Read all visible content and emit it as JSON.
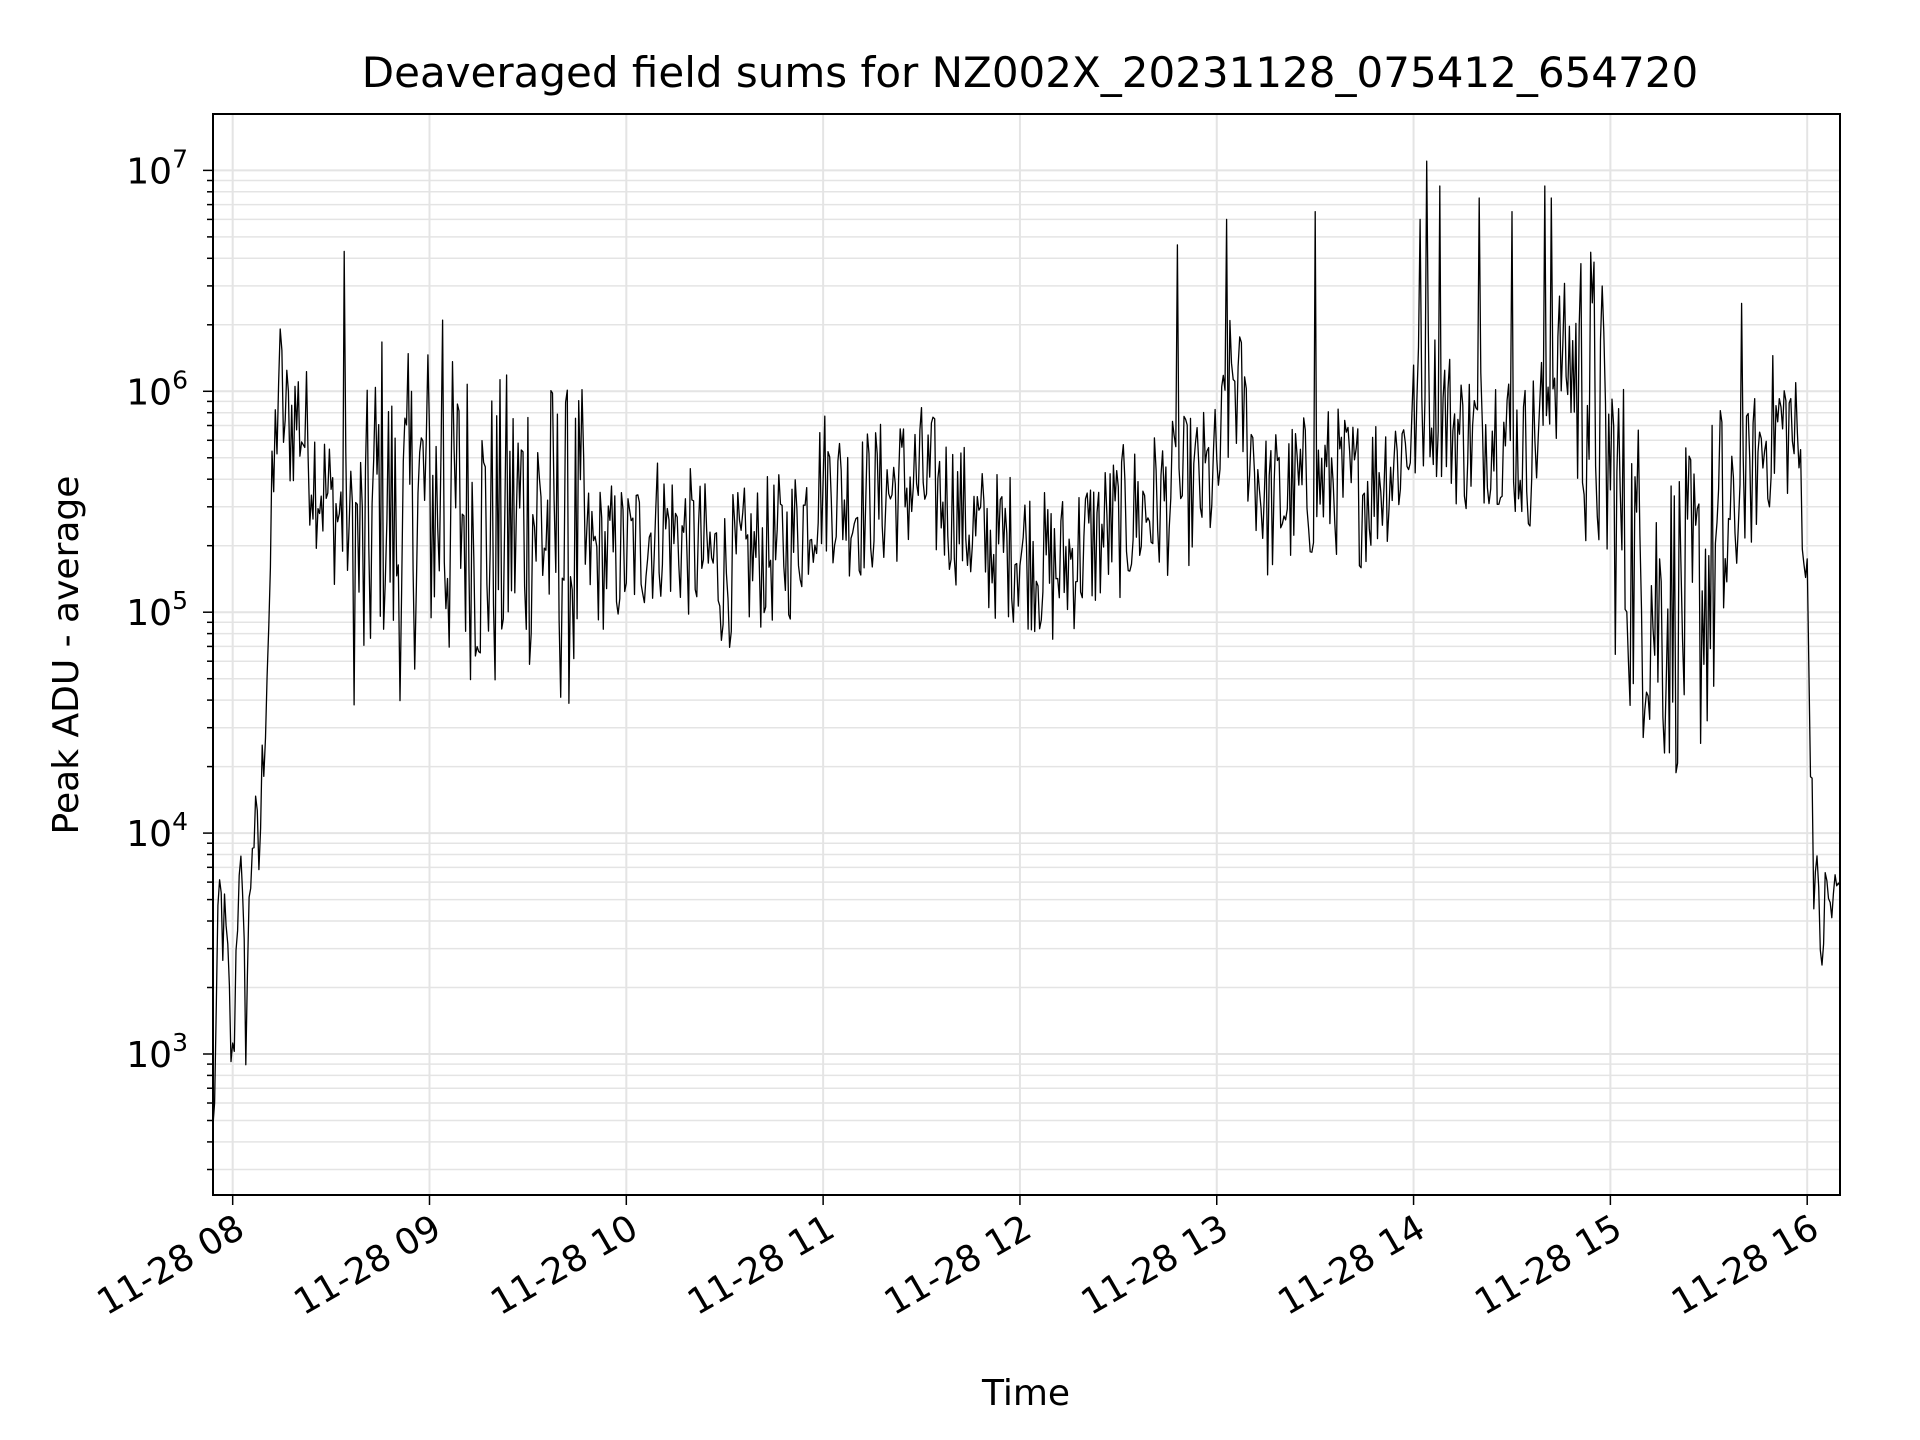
{
  "chart_data": {
    "type": "line",
    "title": "Deaveraged field sums for NZ002X_20231128_075412_654720",
    "xlabel": "Time",
    "ylabel": "Peak ADU - average",
    "y_scale": "log",
    "ylim": [
      230,
      18000000
    ],
    "xlim": [
      "2023-11-28 07:54",
      "2023-11-28 16:10"
    ],
    "grid": true,
    "grid_minor": true,
    "line_color": "#000000",
    "x_ticks": [
      "11-28 08",
      "11-28 09",
      "11-28 10",
      "11-28 11",
      "11-28 12",
      "11-28 13",
      "11-28 14",
      "11-28 15",
      "11-28 16"
    ],
    "y_ticks": [
      {
        "base": "10",
        "exp": "3"
      },
      {
        "base": "10",
        "exp": "4"
      },
      {
        "base": "10",
        "exp": "5"
      },
      {
        "base": "10",
        "exp": "6"
      },
      {
        "base": "10",
        "exp": "7"
      }
    ],
    "series": [
      {
        "x": [
          "2023-11-28 07:54",
          "2023-11-28 07:56",
          "2023-11-28 07:58",
          "2023-11-28 08:00",
          "2023-11-28 08:02",
          "2023-11-28 08:04",
          "2023-11-28 08:06",
          "2023-11-28 08:08",
          "2023-11-28 08:10",
          "2023-11-28 08:12",
          "2023-11-28 08:14",
          "2023-11-28 08:16",
          "2023-11-28 08:20",
          "2023-11-28 08:25",
          "2023-11-28 08:30",
          "2023-11-28 08:35",
          "2023-11-28 08:40",
          "2023-11-28 08:45",
          "2023-11-28 08:50",
          "2023-11-28 08:55",
          "2023-11-28 09:00",
          "2023-11-28 09:05",
          "2023-11-28 09:10",
          "2023-11-28 09:20",
          "2023-11-28 09:30",
          "2023-11-28 09:40",
          "2023-11-28 09:50",
          "2023-11-28 10:00",
          "2023-11-28 10:10",
          "2023-11-28 10:20",
          "2023-11-28 10:30",
          "2023-11-28 10:40",
          "2023-11-28 10:50",
          "2023-11-28 11:00",
          "2023-11-28 11:10",
          "2023-11-28 11:20",
          "2023-11-28 11:30",
          "2023-11-28 11:40",
          "2023-11-28 11:50",
          "2023-11-28 12:00",
          "2023-11-28 12:10",
          "2023-11-28 12:20",
          "2023-11-28 12:30",
          "2023-11-28 12:40",
          "2023-11-28 12:50",
          "2023-11-28 13:00",
          "2023-11-28 13:05",
          "2023-11-28 13:15",
          "2023-11-28 13:25",
          "2023-11-28 13:35",
          "2023-11-28 13:45",
          "2023-11-28 13:55",
          "2023-11-28 14:05",
          "2023-11-28 14:15",
          "2023-11-28 14:25",
          "2023-11-28 14:35",
          "2023-11-28 14:45",
          "2023-11-28 14:55",
          "2023-11-28 15:05",
          "2023-11-28 15:15",
          "2023-11-28 15:25",
          "2023-11-28 15:35",
          "2023-11-28 15:45",
          "2023-11-28 15:50",
          "2023-11-28 15:55",
          "2023-11-28 15:58",
          "2023-11-28 16:00",
          "2023-11-28 16:02",
          "2023-11-28 16:04",
          "2023-11-28 16:06",
          "2023-11-28 16:08",
          "2023-11-28 16:10"
        ],
        "y": [
          400,
          5000,
          3000,
          800,
          9000,
          1400,
          11000,
          7500,
          40000,
          250000,
          1200000,
          700000,
          800000,
          450000,
          300000,
          250000,
          150000,
          400000,
          200000,
          300000,
          350000,
          250000,
          300000,
          200000,
          300000,
          200000,
          180000,
          180000,
          250000,
          200000,
          150000,
          180000,
          200000,
          400000,
          300000,
          350000,
          400000,
          300000,
          200000,
          200000,
          150000,
          200000,
          250000,
          300000,
          350000,
          400000,
          1200000,
          300000,
          350000,
          400000,
          350000,
          500000,
          1000000,
          600000,
          700000,
          500000,
          1500000,
          900000,
          200000,
          100000,
          100000,
          200000,
          500000,
          700000,
          700000,
          450000,
          120000,
          8000,
          3000,
          5000,
          4500,
          6000
        ]
      }
    ],
    "peaks": {
      "x": [
        "2023-11-28 08:34",
        "2023-11-28 09:04",
        "2023-11-28 12:48",
        "2023-11-28 13:03",
        "2023-11-28 13:30",
        "2023-11-28 14:02",
        "2023-11-28 14:04",
        "2023-11-28 14:08",
        "2023-11-28 14:20",
        "2023-11-28 14:30",
        "2023-11-28 14:40",
        "2023-11-28 14:42",
        "2023-11-28 15:40"
      ],
      "y": [
        4300000,
        2100000,
        4600000,
        6000000,
        6500000,
        6000000,
        11000000,
        8500000,
        7500000,
        6500000,
        8500000,
        7500000,
        2500000
      ]
    }
  }
}
